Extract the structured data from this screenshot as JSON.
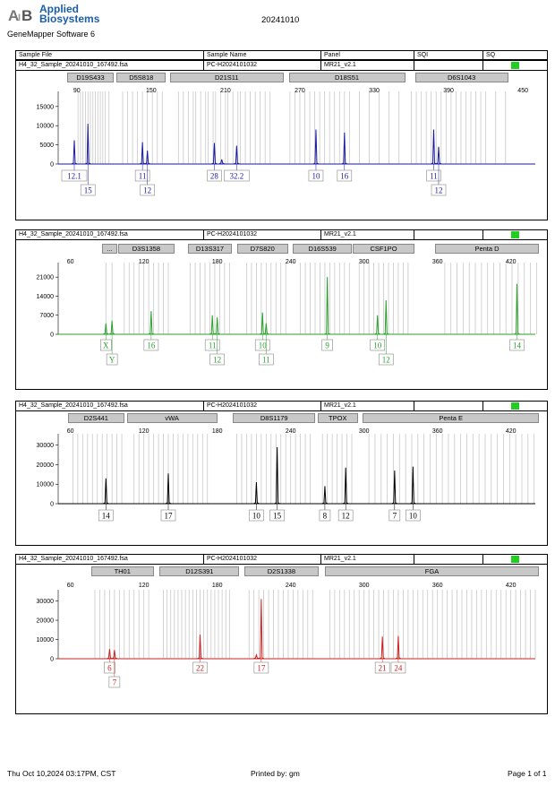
{
  "header": {
    "brand_line1": "Applied",
    "brand_line2": "Biosystems",
    "software": "GeneMapper Software 6",
    "run_date": "20241010"
  },
  "columns": {
    "sample_file": "Sample File",
    "sample_name": "Sample Name",
    "panel": "Panel",
    "sqi": "SQI",
    "sq": "SQ"
  },
  "footer": {
    "timestamp": "Thu Oct 10,2024 03:17PM, CST",
    "printed_by": "Printed by: gm",
    "page": "Page 1 of 1"
  },
  "colors": {
    "blue": "#1a1aa0",
    "green": "#2aa02a",
    "black": "#000000",
    "red": "#cc2020",
    "qc": "#22cc22"
  },
  "chart_data": [
    {
      "type": "line",
      "color": "blue",
      "sample_file": "H4_32_Sample_20241010_167492.fsa",
      "sample_name": "PC-H2024101032",
      "panel": "MR21_v2.1",
      "x_ticks": [
        90,
        150,
        210,
        270,
        330,
        390,
        450
      ],
      "xlim": [
        75,
        460
      ],
      "y_ticks": [
        0,
        5000,
        10000,
        15000
      ],
      "ylim": [
        0,
        18000
      ],
      "markers": [
        {
          "name": "D19S433",
          "start": 82,
          "end": 120
        },
        {
          "name": "D5S818",
          "start": 122,
          "end": 162
        },
        {
          "name": "D21S11",
          "start": 165,
          "end": 257
        },
        {
          "name": "D18S51",
          "start": 261,
          "end": 355
        },
        {
          "name": "D6S1043",
          "start": 363,
          "end": 438
        }
      ],
      "peaks": [
        {
          "x": 88,
          "y": 6200
        },
        {
          "x": 99,
          "y": 10500
        },
        {
          "x": 143,
          "y": 5700
        },
        {
          "x": 147,
          "y": 3500
        },
        {
          "x": 201,
          "y": 5500
        },
        {
          "x": 207,
          "y": 1200
        },
        {
          "x": 219,
          "y": 4800
        },
        {
          "x": 283,
          "y": 9000
        },
        {
          "x": 306,
          "y": 8200
        },
        {
          "x": 378,
          "y": 9000
        },
        {
          "x": 382,
          "y": 4500
        }
      ],
      "labels": [
        {
          "x": 88,
          "text": "12.1",
          "row": 1
        },
        {
          "x": 99,
          "text": "15",
          "row": 2
        },
        {
          "x": 143,
          "text": "11",
          "row": 1
        },
        {
          "x": 147,
          "text": "12",
          "row": 2
        },
        {
          "x": 201,
          "text": "28",
          "row": 1
        },
        {
          "x": 219,
          "text": "32.2",
          "row": 1
        },
        {
          "x": 283,
          "text": "10",
          "row": 1
        },
        {
          "x": 306,
          "text": "16",
          "row": 1
        },
        {
          "x": 378,
          "text": "11",
          "row": 1
        },
        {
          "x": 382,
          "text": "12",
          "row": 2
        }
      ],
      "bins": [
        91,
        93,
        95,
        97,
        99,
        101,
        103,
        105,
        107,
        109,
        111,
        113,
        116,
        127,
        131,
        135,
        139,
        143,
        147,
        151,
        155,
        159,
        172,
        176,
        180,
        184,
        186,
        190,
        194,
        196,
        200,
        202,
        206,
        210,
        212,
        216,
        220,
        222,
        226,
        230,
        234,
        238,
        242,
        246,
        262,
        266,
        270,
        274,
        278,
        282,
        286,
        290,
        294,
        298,
        302,
        306,
        310,
        318,
        326,
        334,
        342,
        350,
        360,
        364,
        368,
        372,
        376,
        380,
        384,
        388,
        392,
        396,
        400,
        404,
        408,
        412,
        416,
        420,
        428,
        436
      ]
    },
    {
      "type": "line",
      "color": "green",
      "sample_file": "H4_32_Sample_20241010_167492.fsa",
      "sample_name": "PC-H2024101032",
      "panel": "MR21_v2.1",
      "x_ticks": [
        60,
        120,
        180,
        240,
        300,
        360,
        420
      ],
      "xlim": [
        50,
        440
      ],
      "y_ticks": [
        0,
        7000,
        14000,
        21000
      ],
      "ylim": [
        0,
        25000
      ],
      "markers": [
        {
          "name": "...",
          "start": 86,
          "end": 98
        },
        {
          "name": "D3S1358",
          "start": 99,
          "end": 145
        },
        {
          "name": "D13S317",
          "start": 156,
          "end": 192
        },
        {
          "name": "D7S820",
          "start": 196,
          "end": 238
        },
        {
          "name": "D16S539",
          "start": 242,
          "end": 290
        },
        {
          "name": "CSF1PO",
          "start": 291,
          "end": 341
        },
        {
          "name": "Penta D",
          "start": 358,
          "end": 443
        }
      ],
      "peaks": [
        {
          "x": 89,
          "y": 4000
        },
        {
          "x": 94,
          "y": 5000
        },
        {
          "x": 126,
          "y": 8500
        },
        {
          "x": 176,
          "y": 7000
        },
        {
          "x": 180,
          "y": 6200
        },
        {
          "x": 217,
          "y": 8000
        },
        {
          "x": 220,
          "y": 4000
        },
        {
          "x": 270,
          "y": 21000
        },
        {
          "x": 311,
          "y": 7000
        },
        {
          "x": 318,
          "y": 12500
        },
        {
          "x": 425,
          "y": 18500
        }
      ],
      "labels": [
        {
          "x": 89,
          "text": "X",
          "row": 1
        },
        {
          "x": 94,
          "text": "Y",
          "row": 2
        },
        {
          "x": 126,
          "text": "16",
          "row": 1
        },
        {
          "x": 176,
          "text": "11",
          "row": 1
        },
        {
          "x": 180,
          "text": "12",
          "row": 2
        },
        {
          "x": 217,
          "text": "10",
          "row": 1
        },
        {
          "x": 220,
          "text": "11",
          "row": 2
        },
        {
          "x": 270,
          "text": "9",
          "row": 1
        },
        {
          "x": 311,
          "text": "10",
          "row": 1
        },
        {
          "x": 318,
          "text": "12",
          "row": 2
        },
        {
          "x": 425,
          "text": "14",
          "row": 1
        }
      ],
      "bins": [
        89,
        94,
        104,
        108,
        112,
        116,
        120,
        124,
        128,
        132,
        136,
        140,
        158,
        162,
        166,
        170,
        174,
        178,
        182,
        186,
        190,
        204,
        208,
        212,
        216,
        220,
        224,
        228,
        232,
        236,
        248,
        252,
        256,
        260,
        264,
        268,
        272,
        276,
        280,
        284,
        288,
        296,
        300,
        304,
        308,
        312,
        316,
        320,
        324,
        328,
        332,
        336,
        366,
        371,
        376,
        381,
        386,
        391,
        396,
        401,
        406,
        411,
        416,
        421,
        426,
        431,
        436,
        441
      ]
    },
    {
      "type": "line",
      "color": "black",
      "sample_file": "H4_32_Sample_20241010_167492.fsa",
      "sample_name": "PC-H2024101032",
      "panel": "MR21_v2.1",
      "x_ticks": [
        60,
        120,
        180,
        240,
        300,
        360,
        420
      ],
      "xlim": [
        50,
        440
      ],
      "y_ticks": [
        0,
        10000,
        20000,
        30000
      ],
      "ylim": [
        0,
        34000
      ],
      "markers": [
        {
          "name": "D2S441",
          "start": 58,
          "end": 104
        },
        {
          "name": "vWA",
          "start": 106,
          "end": 180
        },
        {
          "name": "D8S1179",
          "start": 193,
          "end": 260
        },
        {
          "name": "TPOX",
          "start": 262,
          "end": 295
        },
        {
          "name": "Penta E",
          "start": 299,
          "end": 443
        }
      ],
      "peaks": [
        {
          "x": 89,
          "y": 13000
        },
        {
          "x": 140,
          "y": 15500
        },
        {
          "x": 212,
          "y": 11000
        },
        {
          "x": 229,
          "y": 29000
        },
        {
          "x": 268,
          "y": 9000
        },
        {
          "x": 285,
          "y": 18500
        },
        {
          "x": 325,
          "y": 17000
        },
        {
          "x": 340,
          "y": 19000
        }
      ],
      "labels": [
        {
          "x": 89,
          "text": "14",
          "row": 1
        },
        {
          "x": 140,
          "text": "17",
          "row": 1
        },
        {
          "x": 212,
          "text": "10",
          "row": 1
        },
        {
          "x": 229,
          "text": "15",
          "row": 1
        },
        {
          "x": 268,
          "text": "8",
          "row": 1
        },
        {
          "x": 285,
          "text": "12",
          "row": 1
        },
        {
          "x": 325,
          "text": "7",
          "row": 1
        },
        {
          "x": 340,
          "text": "10",
          "row": 1
        }
      ],
      "bins": [
        62,
        66,
        70,
        74,
        78,
        82,
        86,
        90,
        94,
        98,
        102,
        112,
        116,
        120,
        124,
        128,
        132,
        136,
        140,
        144,
        148,
        152,
        156,
        160,
        164,
        168,
        172,
        196,
        200,
        204,
        208,
        212,
        216,
        220,
        224,
        228,
        232,
        236,
        240,
        244,
        248,
        252,
        256,
        266,
        270,
        274,
        278,
        282,
        286,
        290,
        304,
        309,
        314,
        319,
        324,
        329,
        334,
        339,
        344,
        349,
        354,
        359,
        364,
        369,
        374,
        379,
        384,
        389,
        394,
        399,
        404,
        409,
        414,
        419,
        424,
        429,
        434,
        439
      ]
    },
    {
      "type": "line",
      "color": "red",
      "sample_file": "H4_32_Sample_20241010_167492.fsa",
      "sample_name": "PC-H2024101032",
      "panel": "MR21_v2.1",
      "x_ticks": [
        60,
        120,
        180,
        240,
        300,
        360,
        420
      ],
      "xlim": [
        50,
        440
      ],
      "y_ticks": [
        0,
        10000,
        20000,
        30000
      ],
      "ylim": [
        0,
        34000
      ],
      "markers": [
        {
          "name": "TH01",
          "start": 77,
          "end": 128
        },
        {
          "name": "D12S391",
          "start": 133,
          "end": 198
        },
        {
          "name": "D2S1338",
          "start": 202,
          "end": 263
        },
        {
          "name": "FGA",
          "start": 268,
          "end": 443
        }
      ],
      "peaks": [
        {
          "x": 92,
          "y": 5000
        },
        {
          "x": 96,
          "y": 4500
        },
        {
          "x": 166,
          "y": 12500
        },
        {
          "x": 212,
          "y": 2000
        },
        {
          "x": 216,
          "y": 31000
        },
        {
          "x": 315,
          "y": 11500
        },
        {
          "x": 328,
          "y": 11800
        }
      ],
      "labels": [
        {
          "x": 92,
          "text": "6",
          "row": 1
        },
        {
          "x": 96,
          "text": "7",
          "row": 2
        },
        {
          "x": 166,
          "text": "22",
          "row": 1
        },
        {
          "x": 216,
          "text": "17",
          "row": 1
        },
        {
          "x": 315,
          "text": "21",
          "row": 1
        },
        {
          "x": 328,
          "text": "24",
          "row": 1
        }
      ],
      "bins": [
        80,
        84,
        88,
        92,
        96,
        100,
        104,
        108,
        112,
        116,
        120,
        124,
        136,
        139,
        142,
        145,
        148,
        151,
        154,
        157,
        160,
        163,
        166,
        169,
        172,
        175,
        178,
        181,
        184,
        187,
        190,
        206,
        210,
        214,
        218,
        222,
        226,
        230,
        234,
        238,
        242,
        246,
        250,
        254,
        258,
        272,
        276,
        280,
        284,
        288,
        292,
        296,
        300,
        304,
        308,
        312,
        316,
        320,
        324,
        328,
        332,
        336,
        340,
        344,
        348,
        352,
        356,
        360,
        364,
        368,
        372,
        376,
        380,
        384,
        388,
        392,
        396,
        400,
        404,
        408,
        412,
        416,
        420,
        424,
        428,
        432,
        436,
        440
      ]
    }
  ]
}
